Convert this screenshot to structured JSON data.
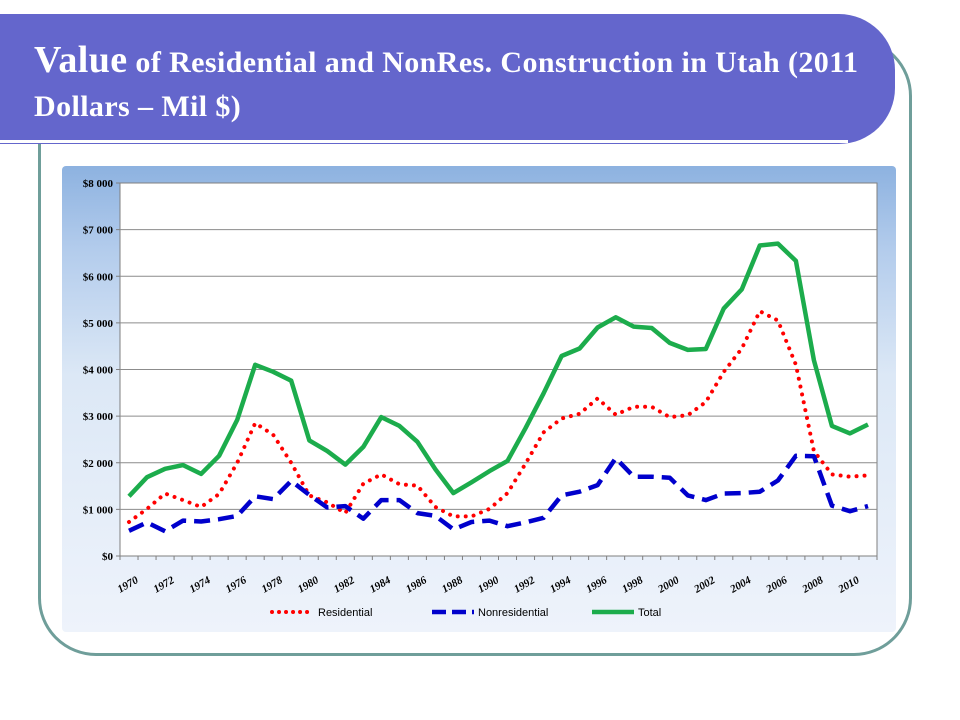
{
  "slide": {
    "title_lead": "Value",
    "title_rest": " of Residential and NonRes. Construction in Utah (2011 Dollars – Mil $)"
  },
  "colors": {
    "title_bar": "#6466cc",
    "frame": "#6f9e9a",
    "residential": "#ff0000",
    "nonresidential": "#0000cc",
    "total": "#1cac4c"
  },
  "chart_data": {
    "type": "line",
    "title": "",
    "xlabel": "",
    "ylabel": "",
    "ylim": [
      0,
      8000
    ],
    "y_ticks": [
      "$0",
      "$1 000",
      "$2 000",
      "$3 000",
      "$4 000",
      "$5 000",
      "$6 000",
      "$7 000",
      "$8 000"
    ],
    "x_tick_labels": [
      "1970",
      "1972",
      "1974",
      "1976",
      "1978",
      "1980",
      "1982",
      "1984",
      "1986",
      "1988",
      "1990",
      "1992",
      "1994",
      "1996",
      "1998",
      "2000",
      "2002",
      "2004",
      "2006",
      "2008",
      "2010"
    ],
    "x": [
      1970,
      1971,
      1972,
      1973,
      1974,
      1975,
      1976,
      1977,
      1978,
      1979,
      1980,
      1981,
      1982,
      1983,
      1984,
      1985,
      1986,
      1987,
      1988,
      1989,
      1990,
      1991,
      1992,
      1993,
      1994,
      1995,
      1996,
      1997,
      1998,
      1999,
      2000,
      2001,
      2002,
      2003,
      2004,
      2005,
      2006,
      2007,
      2008,
      2009,
      2010,
      2011
    ],
    "grid": true,
    "legend_position": "bottom",
    "series": [
      {
        "name": "Residential",
        "style": "dotted",
        "values": [
          730,
          1010,
          1340,
          1200,
          1050,
          1330,
          2000,
          2850,
          2600,
          2000,
          1300,
          1150,
          920,
          1550,
          1750,
          1540,
          1510,
          1050,
          850,
          850,
          1010,
          1350,
          1980,
          2650,
          2950,
          3050,
          3380,
          3030,
          3200,
          3200,
          2980,
          3020,
          3300,
          3950,
          4450,
          5250,
          5050,
          4100,
          2250,
          1750,
          1700,
          1730
        ]
      },
      {
        "name": "Nonresidential",
        "style": "dashed",
        "values": [
          540,
          720,
          530,
          760,
          740,
          790,
          860,
          1280,
          1220,
          1610,
          1310,
          1040,
          1070,
          800,
          1200,
          1200,
          920,
          860,
          570,
          730,
          760,
          640,
          720,
          820,
          1300,
          1380,
          1520,
          2100,
          1700,
          1700,
          1680,
          1300,
          1200,
          1340,
          1350,
          1380,
          1620,
          2150,
          2140,
          1080,
          960,
          1070
        ]
      },
      {
        "name": "Total",
        "style": "solid",
        "values": [
          1280,
          1690,
          1870,
          1950,
          1760,
          2150,
          2920,
          4100,
          3950,
          3760,
          2480,
          2250,
          1960,
          2340,
          2980,
          2790,
          2450,
          1860,
          1350,
          1580,
          1820,
          2040,
          2740,
          3490,
          4290,
          4450,
          4900,
          5120,
          4920,
          4890,
          4570,
          4420,
          4440,
          5310,
          5720,
          6660,
          6700,
          6330,
          4200,
          2790,
          2630,
          2820
        ]
      }
    ]
  }
}
